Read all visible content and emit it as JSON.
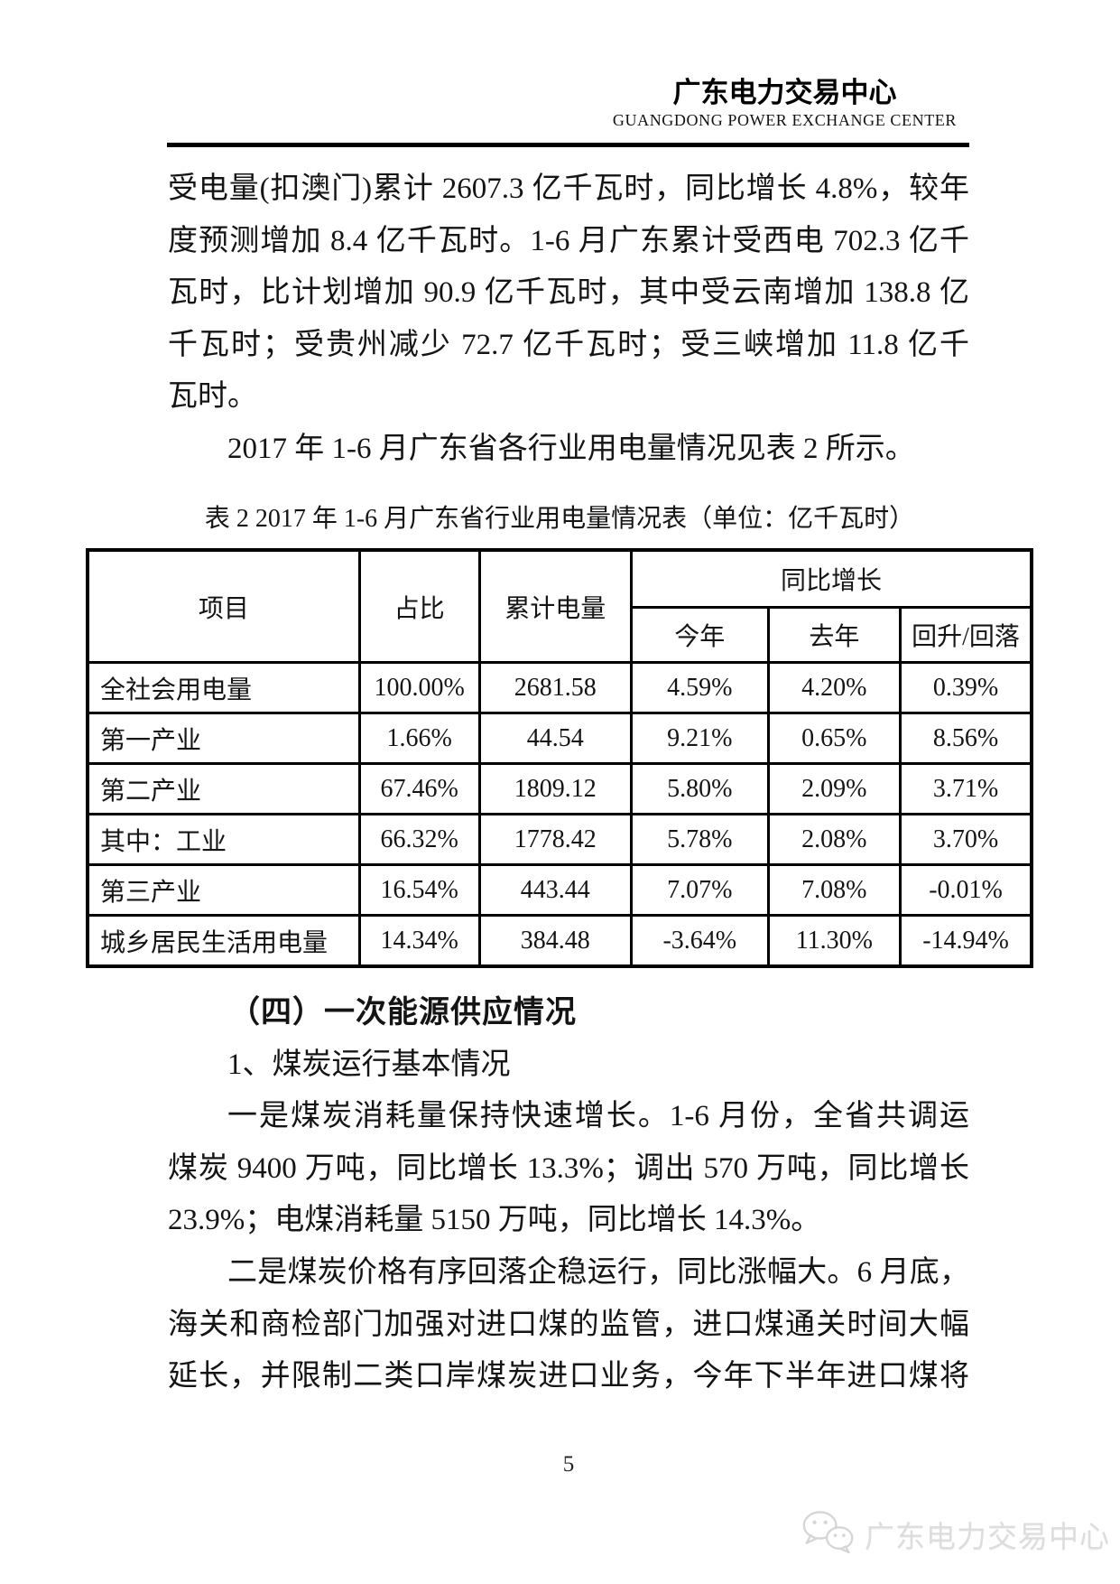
{
  "header": {
    "logo_title": "广东电力交易中心",
    "logo_subtitle": "GUANGDONG  POWER  EXCHANGE  CENTER"
  },
  "body": {
    "lines_top": [
      {
        "text": "受电量(扣澳门)累计 2607.3 亿千瓦时，同比增长 4.8%，较年",
        "fill": true,
        "indent": false,
        "bold": false
      },
      {
        "text": "度预测增加 8.4 亿千瓦时。1-6 月广东累计受西电 702.3 亿千",
        "fill": true,
        "indent": false,
        "bold": false
      },
      {
        "text": "瓦时，比计划增加 90.9 亿千瓦时，其中受云南增加 138.8 亿",
        "fill": true,
        "indent": false,
        "bold": false
      },
      {
        "text": "千瓦时；受贵州减少 72.7 亿千瓦时；受三峡增加 11.8 亿千",
        "fill": true,
        "indent": false,
        "bold": false
      },
      {
        "text": "瓦时。",
        "fill": false,
        "indent": false,
        "bold": false
      },
      {
        "text": "2017 年 1-6 月广东省各行业用电量情况见表 2 所示。",
        "fill": false,
        "indent": true,
        "bold": false
      }
    ],
    "lines_bottom": [
      {
        "text": "（四）一次能源供应情况",
        "fill": false,
        "indent": true,
        "bold": true
      },
      {
        "text": "1、煤炭运行基本情况",
        "fill": false,
        "indent": true,
        "bold": false
      },
      {
        "text": "一是煤炭消耗量保持快速增长。1-6 月份，全省共调运",
        "fill": true,
        "indent": true,
        "bold": false
      },
      {
        "text": "煤炭 9400 万吨，同比增长 13.3%；调出 570 万吨，同比增长",
        "fill": true,
        "indent": false,
        "bold": false
      },
      {
        "text": "23.9%；电煤消耗量 5150 万吨，同比增长 14.3%。",
        "fill": false,
        "indent": false,
        "bold": false
      },
      {
        "text": "二是煤炭价格有序回落企稳运行，同比涨幅大。6 月底，",
        "fill": true,
        "indent": true,
        "bold": false
      },
      {
        "text": "海关和商检部门加强对进口煤的监管，进口煤通关时间大幅",
        "fill": true,
        "indent": false,
        "bold": false
      },
      {
        "text": "延长，并限制二类口岸煤炭进口业务，今年下半年进口煤将",
        "fill": true,
        "indent": false,
        "bold": false
      }
    ]
  },
  "table": {
    "caption": "表 2 2017 年 1-6 月广东省行业用电量情况表（单位：亿千瓦时）",
    "columns": [
      "项目",
      "占比",
      "累计电量"
    ],
    "group_header": "同比增长",
    "group_columns": [
      "今年",
      "去年",
      "回升/回落"
    ],
    "rows": [
      [
        "全社会用电量",
        "100.00%",
        "2681.58",
        "4.59%",
        "4.20%",
        "0.39%"
      ],
      [
        "第一产业",
        "1.66%",
        "44.54",
        "9.21%",
        "0.65%",
        "8.56%"
      ],
      [
        "第二产业",
        "67.46%",
        "1809.12",
        "5.80%",
        "2.09%",
        "3.71%"
      ],
      [
        "其中：工业",
        "66.32%",
        "1778.42",
        "5.78%",
        "2.08%",
        "3.70%"
      ],
      [
        "第三产业",
        "16.54%",
        "443.44",
        "7.07%",
        "7.08%",
        "-0.01%"
      ],
      [
        "城乡居民生活用电量",
        "14.34%",
        "384.48",
        "-3.64%",
        "11.30%",
        "-14.94%"
      ]
    ]
  },
  "footer": {
    "page_number": "5",
    "watermark_text": "广东电力交易中心"
  },
  "colors": {
    "text": "#141414",
    "table_border": "#000000",
    "watermark": "#dddddd"
  }
}
